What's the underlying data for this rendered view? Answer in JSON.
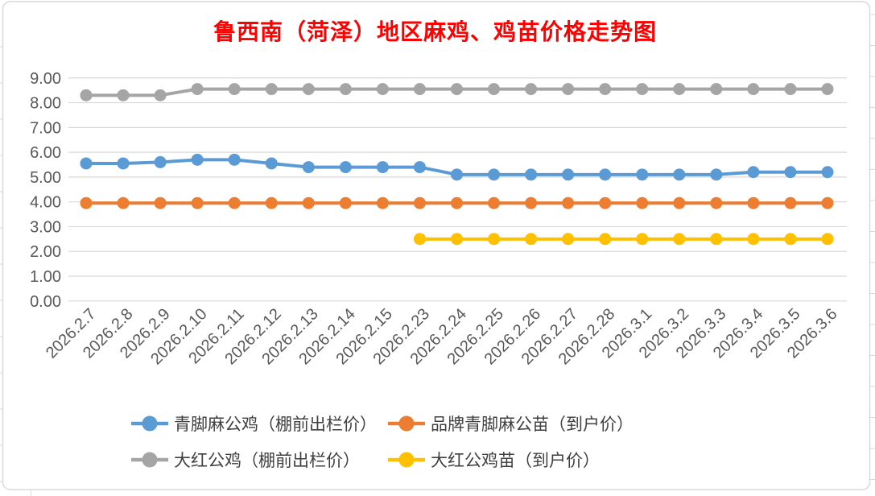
{
  "page": {
    "background": "#FFFFFF",
    "frame_color": "#D9D9D9"
  },
  "chart_data": {
    "type": "line",
    "title": "鲁西南（菏泽）地区麻鸡、鸡苗价格走势图",
    "title_color": "#FF0000",
    "categories": [
      "2026.2.7",
      "2026.2.8",
      "2026.2.9",
      "2026.2.10",
      "2026.2.11",
      "2026.2.12",
      "2026.2.13",
      "2026.2.14",
      "2026.2.15",
      "2026.2.23",
      "2026.2.24",
      "2026.2.25",
      "2026.2.26",
      "2026.2.27",
      "2026.2.28",
      "2026.3.1",
      "2026.3.2",
      "2026.3.3",
      "2026.3.4",
      "2026.3.5",
      "2026.3.6"
    ],
    "series": [
      {
        "name": "青脚麻公鸡（棚前出栏价）",
        "color": "#5B9BD5",
        "values": [
          5.55,
          5.55,
          5.6,
          5.7,
          5.7,
          5.55,
          5.4,
          5.4,
          5.4,
          5.4,
          5.1,
          5.1,
          5.1,
          5.1,
          5.1,
          5.1,
          5.1,
          5.1,
          5.2,
          5.2,
          5.2
        ]
      },
      {
        "name": "品牌青脚麻公苗（到户价）",
        "color": "#ED7D31",
        "values": [
          3.95,
          3.95,
          3.95,
          3.95,
          3.95,
          3.95,
          3.95,
          3.95,
          3.95,
          3.95,
          3.95,
          3.95,
          3.95,
          3.95,
          3.95,
          3.95,
          3.95,
          3.95,
          3.95,
          3.95,
          3.95
        ]
      },
      {
        "name": "大红公鸡（棚前出栏价）",
        "color": "#A5A5A5",
        "values": [
          8.3,
          8.3,
          8.3,
          8.55,
          8.55,
          8.55,
          8.55,
          8.55,
          8.55,
          8.55,
          8.55,
          8.55,
          8.55,
          8.55,
          8.55,
          8.55,
          8.55,
          8.55,
          8.55,
          8.55,
          8.55
        ]
      },
      {
        "name": "大红公鸡苗（到户价）",
        "color": "#FFC000",
        "values": [
          null,
          null,
          null,
          null,
          null,
          null,
          null,
          null,
          null,
          2.5,
          2.5,
          2.5,
          2.5,
          2.5,
          2.5,
          2.5,
          2.5,
          2.5,
          2.5,
          2.5,
          2.5
        ]
      }
    ],
    "y_ticks": [
      "9.00",
      "8.00",
      "7.00",
      "6.00",
      "5.00",
      "4.00",
      "3.00",
      "2.00",
      "1.00",
      "0.00"
    ],
    "ylim": [
      0,
      9
    ],
    "grid": true,
    "legend_position": "bottom",
    "axis_label_color": "#595959",
    "gridline_color": "#D9D9D9"
  }
}
